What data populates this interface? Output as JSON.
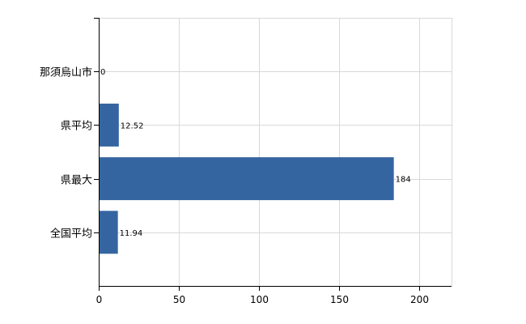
{
  "chart_data": {
    "type": "bar",
    "orientation": "horizontal",
    "title": "",
    "xlabel": "",
    "ylabel": "",
    "categories": [
      "那須烏山市",
      "県平均",
      "県最大",
      "全国平均"
    ],
    "values": [
      0,
      12.52,
      184,
      11.94
    ],
    "data_labels": [
      "0",
      "12.52",
      "184",
      "11.94"
    ],
    "xlim": [
      0,
      220
    ],
    "xticks": [
      0,
      50,
      100,
      150,
      200
    ],
    "grid": true,
    "legend": "none",
    "bar_color": "#3565a1"
  }
}
